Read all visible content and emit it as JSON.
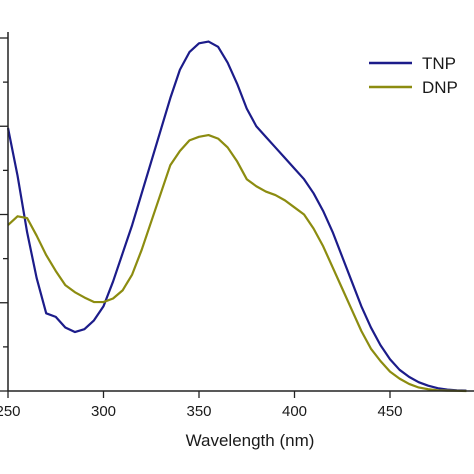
{
  "chart_data": {
    "type": "line",
    "title": "",
    "xlabel": "Wavelength (nm)",
    "ylabel": "",
    "xlim": [
      250,
      490
    ],
    "ylim": [
      0,
      1
    ],
    "x_ticks": [
      "250",
      "300",
      "350",
      "400",
      "450"
    ],
    "y_tick_values": [
      0,
      0.125,
      0.25,
      0.375,
      0.5,
      0.625,
      0.75,
      0.875,
      1.0
    ],
    "grid": false,
    "legend_position": "top-right",
    "series": [
      {
        "name": "TNP",
        "color": "#1c1c8a",
        "x": [
          250,
          255,
          260,
          265,
          270,
          275,
          280,
          285,
          290,
          295,
          300,
          305,
          310,
          315,
          320,
          325,
          330,
          335,
          340,
          345,
          350,
          355,
          360,
          365,
          370,
          375,
          380,
          385,
          390,
          395,
          400,
          405,
          410,
          415,
          420,
          425,
          430,
          435,
          440,
          445,
          450,
          455,
          460,
          465,
          470,
          475,
          480,
          485,
          490
        ],
        "y": [
          0.745,
          0.61,
          0.45,
          0.32,
          0.22,
          0.21,
          0.18,
          0.167,
          0.175,
          0.2,
          0.24,
          0.31,
          0.39,
          0.47,
          0.56,
          0.65,
          0.74,
          0.83,
          0.91,
          0.96,
          0.985,
          0.99,
          0.975,
          0.93,
          0.87,
          0.8,
          0.75,
          0.72,
          0.69,
          0.66,
          0.63,
          0.6,
          0.56,
          0.51,
          0.45,
          0.38,
          0.31,
          0.24,
          0.18,
          0.13,
          0.09,
          0.06,
          0.04,
          0.025,
          0.015,
          0.008,
          0.004,
          0.002,
          0.001
        ]
      },
      {
        "name": "DNP",
        "color": "#8c8c10",
        "x": [
          250,
          255,
          260,
          265,
          270,
          275,
          280,
          285,
          290,
          295,
          300,
          305,
          310,
          315,
          320,
          325,
          330,
          335,
          340,
          345,
          350,
          355,
          360,
          365,
          370,
          375,
          380,
          385,
          390,
          395,
          400,
          405,
          410,
          415,
          420,
          425,
          430,
          435,
          440,
          445,
          450,
          455,
          460,
          465,
          470,
          475,
          480,
          485,
          490
        ],
        "y": [
          0.47,
          0.495,
          0.49,
          0.44,
          0.385,
          0.34,
          0.3,
          0.28,
          0.265,
          0.252,
          0.252,
          0.262,
          0.285,
          0.33,
          0.4,
          0.48,
          0.56,
          0.64,
          0.68,
          0.71,
          0.72,
          0.725,
          0.715,
          0.69,
          0.65,
          0.6,
          0.58,
          0.565,
          0.555,
          0.54,
          0.52,
          0.5,
          0.46,
          0.41,
          0.35,
          0.29,
          0.23,
          0.17,
          0.12,
          0.085,
          0.055,
          0.035,
          0.02,
          0.01,
          0.005,
          0.002,
          0.001,
          0.0005,
          0.0
        ]
      }
    ]
  }
}
